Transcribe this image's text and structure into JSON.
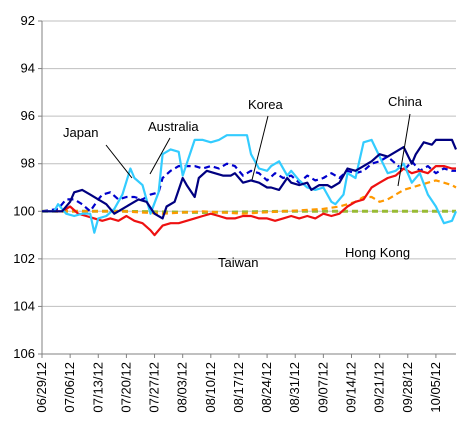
{
  "chart_data": {
    "type": "line",
    "title": "",
    "xlabel": "",
    "ylabel": "",
    "ylim": [
      92,
      106
    ],
    "y_inverted": true,
    "y_ticks": [
      92,
      94,
      96,
      98,
      100,
      102,
      104,
      106
    ],
    "x_tick_labels": [
      "06/29/12",
      "07/06/12",
      "07/13/12",
      "07/20/12",
      "07/27/12",
      "08/03/12",
      "08/10/12",
      "08/17/12",
      "08/24/12",
      "08/31/12",
      "09/07/12",
      "09/14/12",
      "09/21/12",
      "09/28/12",
      "10/05/12"
    ],
    "x_range_days": [
      0,
      103
    ],
    "grid": "horizontal",
    "legend": "none (inline labels)",
    "annotations": [
      {
        "text": "Japan",
        "series": "Japan"
      },
      {
        "text": "Australia",
        "series": "Australia"
      },
      {
        "text": "Korea",
        "series": "Korea"
      },
      {
        "text": "China",
        "series": "China"
      },
      {
        "text": "Taiwan",
        "series": "Taiwan"
      },
      {
        "text": "Hong Kong",
        "series": "Hong Kong"
      }
    ],
    "series": [
      {
        "name": "Korea",
        "color": "#000080",
        "dash": "solid",
        "points": [
          [
            0,
            100
          ],
          [
            5,
            100
          ],
          [
            7,
            99.6
          ],
          [
            8,
            99.2
          ],
          [
            10,
            99.1
          ],
          [
            12,
            99.3
          ],
          [
            14,
            99.5
          ],
          [
            16,
            99.7
          ],
          [
            18,
            100.1
          ],
          [
            20,
            99.9
          ],
          [
            22,
            99.7
          ],
          [
            24,
            99.5
          ],
          [
            26,
            99.6
          ],
          [
            28,
            100.1
          ],
          [
            30,
            100.3
          ],
          [
            31,
            99.8
          ],
          [
            33,
            99.6
          ],
          [
            35,
            98.6
          ],
          [
            36,
            98.9
          ],
          [
            38,
            99.4
          ],
          [
            39,
            98.6
          ],
          [
            41,
            98.3
          ],
          [
            43,
            98.4
          ],
          [
            45,
            98.5
          ],
          [
            47,
            98.5
          ],
          [
            48,
            98.4
          ],
          [
            50,
            98.8
          ],
          [
            52,
            98.7
          ],
          [
            54,
            98.8
          ],
          [
            56,
            99.0
          ],
          [
            57,
            99.0
          ],
          [
            59,
            99.1
          ],
          [
            61,
            98.6
          ],
          [
            62,
            98.8
          ],
          [
            64,
            98.9
          ],
          [
            66,
            98.8
          ],
          [
            67,
            99.1
          ],
          [
            69,
            98.9
          ],
          [
            71,
            98.9
          ],
          [
            72,
            99.0
          ],
          [
            74,
            98.8
          ],
          [
            76,
            98.2
          ],
          [
            78,
            98.3
          ],
          [
            80,
            98.1
          ],
          [
            82,
            97.9
          ],
          [
            84,
            97.6
          ],
          [
            86,
            97.7
          ],
          [
            88,
            97.5
          ],
          [
            90,
            97.3
          ],
          [
            92,
            98.0
          ],
          [
            93,
            97.6
          ],
          [
            95,
            97.1
          ],
          [
            97,
            97.2
          ],
          [
            98,
            97.0
          ],
          [
            100,
            97.0
          ],
          [
            102,
            97.0
          ],
          [
            103,
            97.4
          ]
        ]
      },
      {
        "name": "Australia",
        "color": "#33CCFF",
        "dash": "solid",
        "points": [
          [
            0,
            100
          ],
          [
            3,
            100
          ],
          [
            4,
            99.7
          ],
          [
            6,
            100.1
          ],
          [
            8,
            100.2
          ],
          [
            10,
            100.1
          ],
          [
            12,
            100.1
          ],
          [
            13,
            100.9
          ],
          [
            14,
            100.3
          ],
          [
            16,
            100.2
          ],
          [
            18,
            99.9
          ],
          [
            20,
            99.3
          ],
          [
            22,
            98.2
          ],
          [
            23,
            98.6
          ],
          [
            25,
            98.9
          ],
          [
            27,
            100.1
          ],
          [
            29,
            99.2
          ],
          [
            30,
            97.6
          ],
          [
            32,
            97.4
          ],
          [
            34,
            97.5
          ],
          [
            35,
            98.5
          ],
          [
            36,
            98.0
          ],
          [
            38,
            97.0
          ],
          [
            40,
            97.0
          ],
          [
            42,
            97.1
          ],
          [
            44,
            97.0
          ],
          [
            46,
            96.8
          ],
          [
            49,
            96.8
          ],
          [
            51,
            96.8
          ],
          [
            52,
            97.6
          ],
          [
            54,
            98.2
          ],
          [
            56,
            98.3
          ],
          [
            57,
            98.1
          ],
          [
            59,
            97.9
          ],
          [
            61,
            98.5
          ],
          [
            62,
            98.3
          ],
          [
            64,
            98.7
          ],
          [
            66,
            99.0
          ],
          [
            68,
            99.1
          ],
          [
            70,
            99.0
          ],
          [
            72,
            99.6
          ],
          [
            73,
            99.7
          ],
          [
            75,
            99.3
          ],
          [
            76,
            98.4
          ],
          [
            78,
            98.6
          ],
          [
            80,
            97.1
          ],
          [
            82,
            97.0
          ],
          [
            84,
            97.7
          ],
          [
            86,
            98.4
          ],
          [
            88,
            98.3
          ],
          [
            90,
            98.0
          ],
          [
            92,
            98.8
          ],
          [
            94,
            98.4
          ],
          [
            96,
            99.3
          ],
          [
            98,
            99.8
          ],
          [
            100,
            100.5
          ],
          [
            102,
            100.4
          ],
          [
            103,
            100.0
          ]
        ]
      },
      {
        "name": "Japan",
        "color": "#0000CC",
        "dash": "dashed",
        "points": [
          [
            0,
            100
          ],
          [
            4,
            99.9
          ],
          [
            6,
            99.5
          ],
          [
            8,
            99.5
          ],
          [
            10,
            99.7
          ],
          [
            12,
            100.0
          ],
          [
            14,
            99.5
          ],
          [
            15,
            99.3
          ],
          [
            17,
            99.2
          ],
          [
            19,
            99.5
          ],
          [
            21,
            99.4
          ],
          [
            23,
            99.4
          ],
          [
            25,
            99.5
          ],
          [
            27,
            99.3
          ],
          [
            29,
            99.2
          ],
          [
            30,
            98.6
          ],
          [
            32,
            98.3
          ],
          [
            34,
            98.1
          ],
          [
            36,
            98.1
          ],
          [
            38,
            98.1
          ],
          [
            40,
            98.2
          ],
          [
            42,
            98.1
          ],
          [
            44,
            98.2
          ],
          [
            46,
            98.0
          ],
          [
            48,
            98.1
          ],
          [
            50,
            98.5
          ],
          [
            52,
            98.3
          ],
          [
            54,
            98.4
          ],
          [
            56,
            98.7
          ],
          [
            58,
            98.4
          ],
          [
            60,
            98.6
          ],
          [
            62,
            98.5
          ],
          [
            64,
            98.8
          ],
          [
            66,
            98.5
          ],
          [
            68,
            98.7
          ],
          [
            70,
            98.6
          ],
          [
            72,
            98.4
          ],
          [
            74,
            98.6
          ],
          [
            76,
            98.3
          ],
          [
            78,
            98.4
          ],
          [
            80,
            98.3
          ],
          [
            82,
            98.0
          ],
          [
            84,
            97.9
          ],
          [
            86,
            97.7
          ],
          [
            88,
            98.0
          ],
          [
            90,
            98.3
          ],
          [
            92,
            97.9
          ],
          [
            94,
            98.3
          ],
          [
            96,
            98.1
          ],
          [
            98,
            98.4
          ],
          [
            100,
            98.2
          ],
          [
            102,
            98.3
          ],
          [
            103,
            98.3
          ]
        ]
      },
      {
        "name": "China",
        "color": "#FF9900",
        "dash": "dashed",
        "points": [
          [
            0,
            100
          ],
          [
            10,
            100
          ],
          [
            20,
            100
          ],
          [
            30,
            100.1
          ],
          [
            40,
            100.0
          ],
          [
            50,
            100.1
          ],
          [
            60,
            100.0
          ],
          [
            70,
            99.9
          ],
          [
            74,
            99.8
          ],
          [
            76,
            99.7
          ],
          [
            78,
            99.6
          ],
          [
            80,
            99.4
          ],
          [
            82,
            99.4
          ],
          [
            84,
            99.6
          ],
          [
            86,
            99.5
          ],
          [
            88,
            99.3
          ],
          [
            90,
            99.1
          ],
          [
            92,
            99.0
          ],
          [
            94,
            98.9
          ],
          [
            96,
            98.8
          ],
          [
            98,
            98.7
          ],
          [
            100,
            98.8
          ],
          [
            102,
            98.9
          ],
          [
            103,
            99.0
          ]
        ]
      },
      {
        "name": "Taiwan",
        "color": "#EE1111",
        "dash": "solid",
        "points": [
          [
            0,
            100
          ],
          [
            5,
            100
          ],
          [
            7,
            99.8
          ],
          [
            9,
            100.1
          ],
          [
            11,
            100.2
          ],
          [
            13,
            100.3
          ],
          [
            15,
            100.4
          ],
          [
            17,
            100.3
          ],
          [
            19,
            100.4
          ],
          [
            21,
            100.2
          ],
          [
            23,
            100.4
          ],
          [
            25,
            100.5
          ],
          [
            27,
            100.8
          ],
          [
            28,
            101.0
          ],
          [
            30,
            100.6
          ],
          [
            32,
            100.5
          ],
          [
            34,
            100.5
          ],
          [
            36,
            100.4
          ],
          [
            38,
            100.3
          ],
          [
            40,
            100.2
          ],
          [
            42,
            100.1
          ],
          [
            44,
            100.2
          ],
          [
            46,
            100.3
          ],
          [
            48,
            100.3
          ],
          [
            50,
            100.2
          ],
          [
            52,
            100.2
          ],
          [
            54,
            100.3
          ],
          [
            56,
            100.3
          ],
          [
            58,
            100.4
          ],
          [
            60,
            100.3
          ],
          [
            62,
            100.2
          ],
          [
            64,
            100.3
          ],
          [
            66,
            100.2
          ],
          [
            68,
            100.3
          ],
          [
            70,
            100.1
          ],
          [
            72,
            100.2
          ],
          [
            74,
            100.1
          ],
          [
            76,
            99.8
          ],
          [
            78,
            99.6
          ],
          [
            80,
            99.5
          ],
          [
            82,
            99.0
          ],
          [
            84,
            98.8
          ],
          [
            86,
            98.6
          ],
          [
            88,
            98.5
          ],
          [
            90,
            98.2
          ],
          [
            92,
            98.4
          ],
          [
            94,
            98.3
          ],
          [
            96,
            98.4
          ],
          [
            98,
            98.1
          ],
          [
            100,
            98.1
          ],
          [
            102,
            98.2
          ],
          [
            103,
            98.2
          ]
        ]
      },
      {
        "name": "Hong Kong",
        "color": "#99BB33",
        "dash": "dashed",
        "points": [
          [
            0,
            100
          ],
          [
            20,
            100
          ],
          [
            40,
            100.05
          ],
          [
            60,
            100.0
          ],
          [
            80,
            100.0
          ],
          [
            103,
            100.0
          ]
        ]
      }
    ]
  }
}
